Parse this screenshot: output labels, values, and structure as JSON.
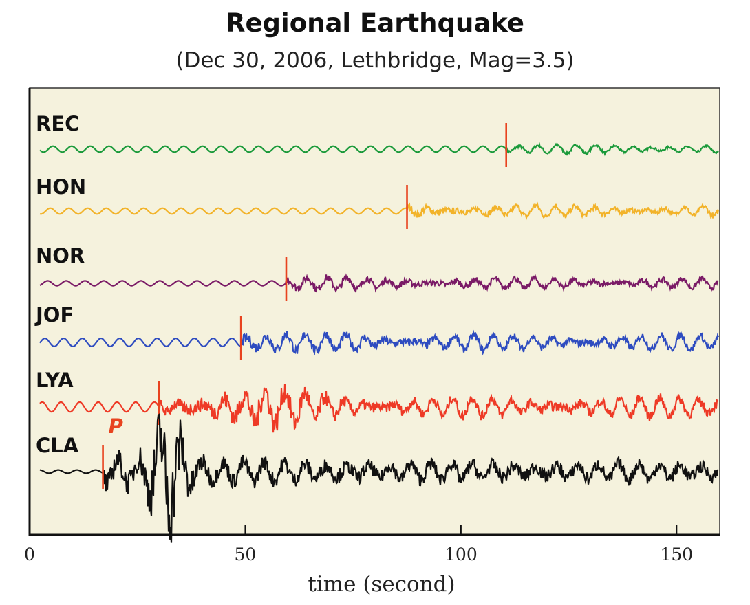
{
  "chart_data": {
    "type": "line",
    "title": "Regional Earthquake",
    "subtitle": "(Dec 30, 2006, Lethbridge, Mag=3.5)",
    "xlabel": "time (second)",
    "xlim": [
      0,
      160
    ],
    "xticks": [
      0,
      50,
      100,
      150
    ],
    "xtick_labels": [
      "0",
      "50",
      "100",
      "150"
    ],
    "grid": false,
    "background": "#f5f2dd",
    "pick_color": "#e8431f",
    "p_label": "P",
    "series": [
      {
        "name": "REC",
        "color": "#1a9a3a",
        "arrival_time": 110.5,
        "noise_amp": 0.18,
        "signal_amp": 0.2
      },
      {
        "name": "HON",
        "color": "#f2b32a",
        "arrival_time": 87.5,
        "noise_amp": 0.18,
        "signal_amp": 0.45
      },
      {
        "name": "NOR",
        "color": "#7a1a66",
        "arrival_time": 59.5,
        "noise_amp": 0.15,
        "signal_amp": 0.5
      },
      {
        "name": "JOF",
        "color": "#2e4cc0",
        "arrival_time": 49,
        "noise_amp": 0.25,
        "signal_amp": 0.7
      },
      {
        "name": "LYA",
        "color": "#ee3a26",
        "arrival_time": 30,
        "noise_amp": 0.3,
        "signal_amp": 1.1
      },
      {
        "name": "CLA",
        "color": "#111111",
        "arrival_time": 17,
        "noise_amp": 0.1,
        "signal_amp": 1.5
      }
    ]
  }
}
